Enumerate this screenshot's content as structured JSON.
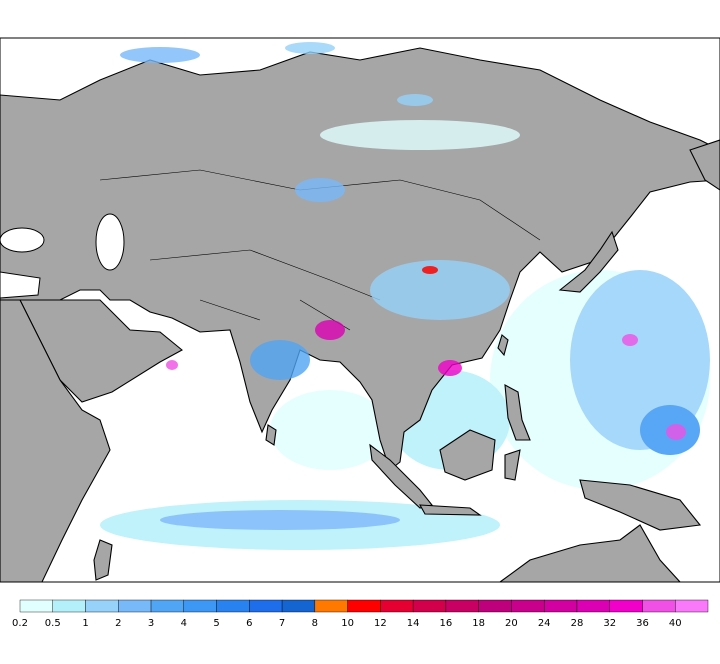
{
  "colorbar": {
    "levels": [
      0.2,
      0.5,
      1,
      2,
      3,
      4,
      5,
      6,
      7,
      8,
      10,
      12,
      14,
      16,
      18,
      20,
      24,
      28,
      32,
      36,
      40
    ],
    "colors": [
      "#e1ffff",
      "#b4f0fa",
      "#96d2fa",
      "#78b9fa",
      "#50a5f5",
      "#3c97f5",
      "#2882f0",
      "#1e6eeb",
      "#1464d2",
      "#ff7800",
      "#ff0000",
      "#e60032",
      "#d2004b",
      "#c80064",
      "#be007d",
      "#c8008c",
      "#d200a0",
      "#dc00b4",
      "#f000c8",
      "#f050e6",
      "#fa78fa"
    ]
  }
}
